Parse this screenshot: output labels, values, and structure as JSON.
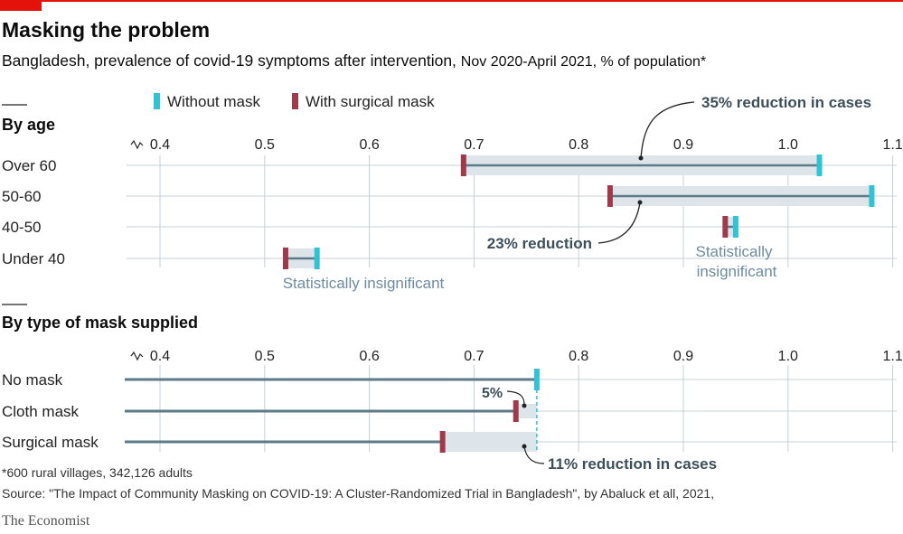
{
  "header": {
    "title": "Masking the problem",
    "subtitle_main": "Bangladesh, prevalence of covid-19 symptoms after intervention,",
    "subtitle_light": "Nov 2020-April 2021, % of population*"
  },
  "legend": {
    "without_mask": "Without mask",
    "with_mask": "With surgical mask"
  },
  "colors": {
    "without": "#2fc4d4",
    "with": "#9e3a4b",
    "line": "#5d7a89",
    "band": "#dde4ea",
    "grid": "#c5d0d9",
    "annotation": "#3d4f5b",
    "muted_text": "#6d8ba0",
    "brand_red": "#e3120b"
  },
  "chart_data": [
    {
      "type": "range",
      "title": "By age",
      "axis_break": true,
      "xlim": [
        0.37,
        1.1
      ],
      "ticks": [
        0.4,
        0.5,
        0.6,
        0.7,
        0.8,
        0.9,
        1.0,
        1.1
      ],
      "tick_labels": [
        "0.4",
        "0.5",
        "0.6",
        "0.7",
        "0.8",
        "0.9",
        "1.0",
        "1.1"
      ],
      "categories": [
        "Over 60",
        "50-60",
        "40-50",
        "Under 40"
      ],
      "series": [
        {
          "name": "Without mask",
          "values": [
            1.03,
            1.08,
            0.95,
            0.55
          ]
        },
        {
          "name": "With surgical mask",
          "values": [
            0.69,
            0.83,
            0.94,
            0.52
          ]
        }
      ],
      "annotations": {
        "over60": "35% reduction in cases",
        "age5060": "23% reduction",
        "age4050": [
          "Statistically",
          "insignificant"
        ],
        "under40": "Statistically insignificant"
      }
    },
    {
      "type": "bar",
      "title": "By type of mask supplied",
      "axis_break": true,
      "xlim": [
        0.37,
        1.1
      ],
      "ticks": [
        0.4,
        0.5,
        0.6,
        0.7,
        0.8,
        0.9,
        1.0,
        1.1
      ],
      "tick_labels": [
        "0.4",
        "0.5",
        "0.6",
        "0.7",
        "0.8",
        "0.9",
        "1.0",
        "1.1"
      ],
      "categories": [
        "No mask",
        "Cloth mask",
        "Surgical mask"
      ],
      "values": [
        0.76,
        0.74,
        0.67
      ],
      "reference": 0.76,
      "annotations": {
        "cloth": "5%",
        "surgical": "11% reduction in cases"
      }
    }
  ],
  "footer": {
    "note": "*600 rural villages, 342,126 adults",
    "source": "Source: \"The Impact of Community Masking on COVID-19: A Cluster-Randomized Trial in Bangladesh\", by Abaluck et all, 2021,",
    "brand": "The Economist"
  }
}
